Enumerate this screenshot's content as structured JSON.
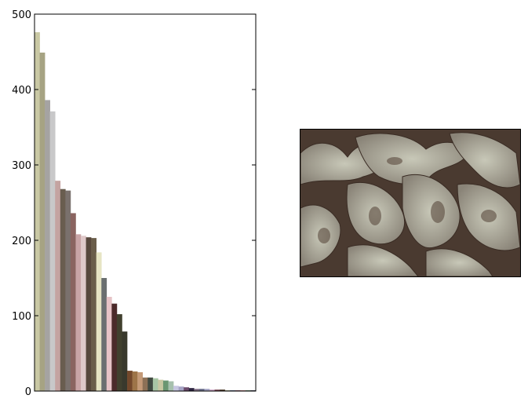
{
  "chart_data": {
    "type": "bar",
    "title": "",
    "xlabel": "",
    "ylabel": "",
    "ylim": [
      0,
      500
    ],
    "yticks": [
      0,
      100,
      200,
      300,
      400,
      500
    ],
    "grid": false,
    "values": [
      476,
      449,
      386,
      371,
      279,
      268,
      266,
      236,
      208,
      206,
      204,
      203,
      184,
      150,
      125,
      116,
      102,
      79,
      27,
      26,
      25,
      18,
      18,
      17,
      15,
      14,
      13,
      7,
      6,
      5,
      4,
      3,
      3,
      3,
      2,
      2,
      2,
      1,
      1,
      1,
      1,
      1,
      1
    ],
    "colors": [
      "#c9c8a4",
      "#a6a383",
      "#a5a3a2",
      "#c8c8c9",
      "#c4a3a1",
      "#695d4f",
      "#7a716d",
      "#8a6460",
      "#c9a4a6",
      "#dfc8c9",
      "#57473c",
      "#6a5d4a",
      "#e6e4c3",
      "#6a6f70",
      "#e6c3c6",
      "#4b2a2a",
      "#41402e",
      "#39392d",
      "#73482b",
      "#9d7448",
      "#c49a78",
      "#8c7056",
      "#414a41",
      "#a8c6a5",
      "#c8c7a2",
      "#6a9671",
      "#a6c0ad",
      "#c6c6e0",
      "#a5a3c4",
      "#6a4a6a",
      "#2c2440",
      "#86748a",
      "#6a6f8a",
      "#a6a6c4",
      "#c9a3c5",
      "#7a4a55",
      "#4a3a2a",
      "#8a8a6a",
      "#3a4a6a",
      "#6a3a4a",
      "#a06060",
      "#4a6a4a",
      "#2a2a3a"
    ]
  },
  "image_panel": {
    "description_icon": "lichen-photo"
  }
}
